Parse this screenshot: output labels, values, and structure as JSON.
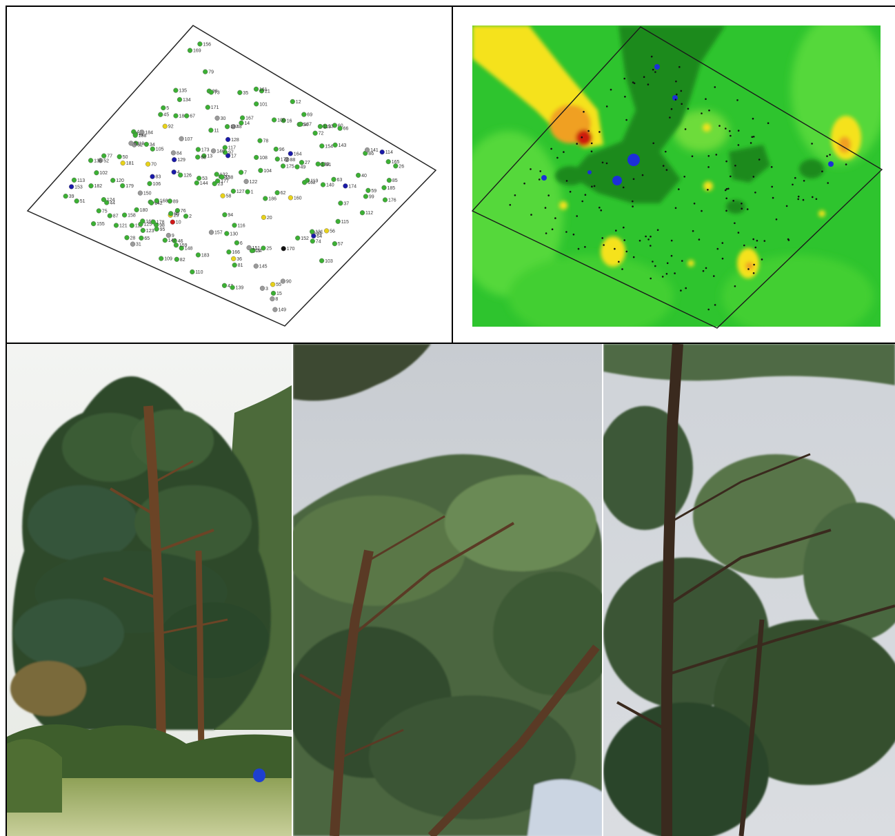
{
  "figure": {
    "point_map": {
      "labels": [
        "1",
        "2",
        "3",
        "4",
        "5",
        "6",
        "7",
        "8",
        "9",
        "10",
        "11",
        "12",
        "13",
        "14",
        "15",
        "16",
        "17",
        "18",
        "19",
        "20",
        "21",
        "22",
        "23",
        "24",
        "25",
        "26",
        "27",
        "28",
        "29",
        "30",
        "31",
        "32",
        "33",
        "34",
        "35",
        "36",
        "37",
        "38",
        "39",
        "40",
        "41",
        "42",
        "43",
        "44",
        "45",
        "46",
        "47",
        "48",
        "49",
        "50",
        "51",
        "52",
        "53",
        "54",
        "55",
        "56",
        "57",
        "58",
        "59",
        "60",
        "61",
        "62",
        "63",
        "64",
        "65",
        "66",
        "67",
        "68",
        "69",
        "70",
        "71",
        "72",
        "73",
        "74",
        "75",
        "76",
        "77",
        "78",
        "79",
        "80",
        "81",
        "82",
        "83",
        "84",
        "85",
        "86",
        "87",
        "88",
        "89",
        "90",
        "91",
        "92",
        "93",
        "94",
        "95",
        "96",
        "97",
        "98",
        "99",
        "100",
        "101",
        "102",
        "103",
        "104",
        "105",
        "106",
        "107",
        "108",
        "109",
        "110",
        "111",
        "112",
        "113",
        "114",
        "115",
        "116",
        "117",
        "118",
        "119",
        "120",
        "121",
        "122",
        "123",
        "124",
        "125",
        "126",
        "127",
        "128",
        "129",
        "130",
        "131",
        "132",
        "133",
        "134",
        "135",
        "136",
        "137",
        "138",
        "139",
        "140",
        "141",
        "142",
        "143",
        "144",
        "145",
        "146",
        "147",
        "148",
        "149",
        "150",
        "151",
        "152",
        "153",
        "154",
        "155",
        "156",
        "157",
        "158",
        "159",
        "160",
        "161",
        "162",
        "163",
        "164",
        "165",
        "166",
        "167",
        "168",
        "169",
        "170",
        "171",
        "172",
        "173",
        "174",
        "175",
        "176",
        "177",
        "178",
        "179",
        "180",
        "181",
        "182",
        "183",
        "184",
        "185",
        "186",
        "187",
        "188"
      ],
      "marker_colors": {
        "green": "#3cb034",
        "blue": "#1a1aa8",
        "gray": "#9a9a9a",
        "yellow": "#e8d21a",
        "red": "#d01818",
        "black": "#111111"
      }
    },
    "contour_map": {
      "palette": {
        "dark_green": "#1f8a1f",
        "green": "#2ec42e",
        "light_green": "#7ee03a",
        "yellow": "#f5e21a",
        "orange": "#f0a020",
        "red": "#cc1a10",
        "blue": "#1c2fd8"
      }
    },
    "photos": [
      {
        "id": "tree-full",
        "subject": "pine tree in meadow"
      },
      {
        "id": "crown-left",
        "subject": "pine crown branches"
      },
      {
        "id": "crown-right",
        "subject": "pine crown with trunk"
      }
    ]
  }
}
